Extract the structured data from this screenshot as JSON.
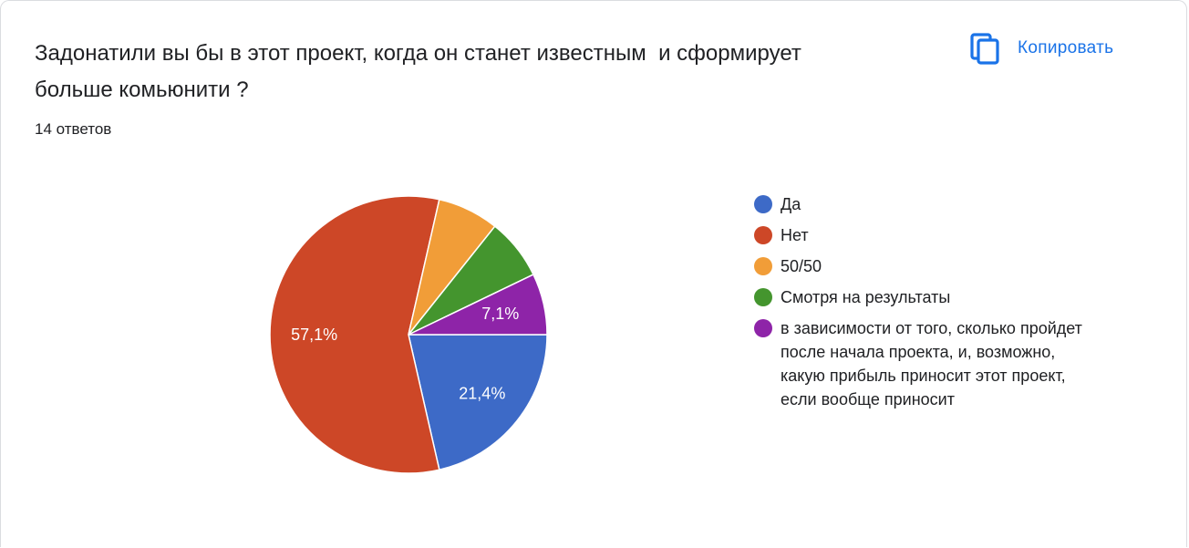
{
  "question": {
    "title": "Задонатили вы бы в этот проект, когда он станет известным  и сформирует больше комьюнити ?",
    "response_count": "14 ответов"
  },
  "toolbar": {
    "copy_label": "Копировать",
    "copy_icon": "copy-icon"
  },
  "colors": {
    "accent": "#1a73e8"
  },
  "chart_data": {
    "type": "pie",
    "title": "",
    "total_responses": 14,
    "slices": [
      {
        "label": "Да",
        "value": 3,
        "percent": 21.4,
        "percent_label": "21,4%",
        "color": "#3d6ac7"
      },
      {
        "label": "Нет",
        "value": 8,
        "percent": 57.1,
        "percent_label": "57,1%",
        "color": "#cd4727"
      },
      {
        "label": "50/50",
        "value": 1,
        "percent": 7.1,
        "percent_label": "",
        "color": "#f19d38"
      },
      {
        "label": "Смотря на результаты",
        "value": 1,
        "percent": 7.1,
        "percent_label": "",
        "color": "#44952e"
      },
      {
        "label": "в зависимости от того, сколько пройдет после начала проекта, и, возможно, какую прибыль приносит этот проект, если вообще приносит",
        "value": 1,
        "percent": 7.1,
        "percent_label": "7,1%",
        "color": "#8e24a8"
      }
    ],
    "legend_position": "right"
  }
}
